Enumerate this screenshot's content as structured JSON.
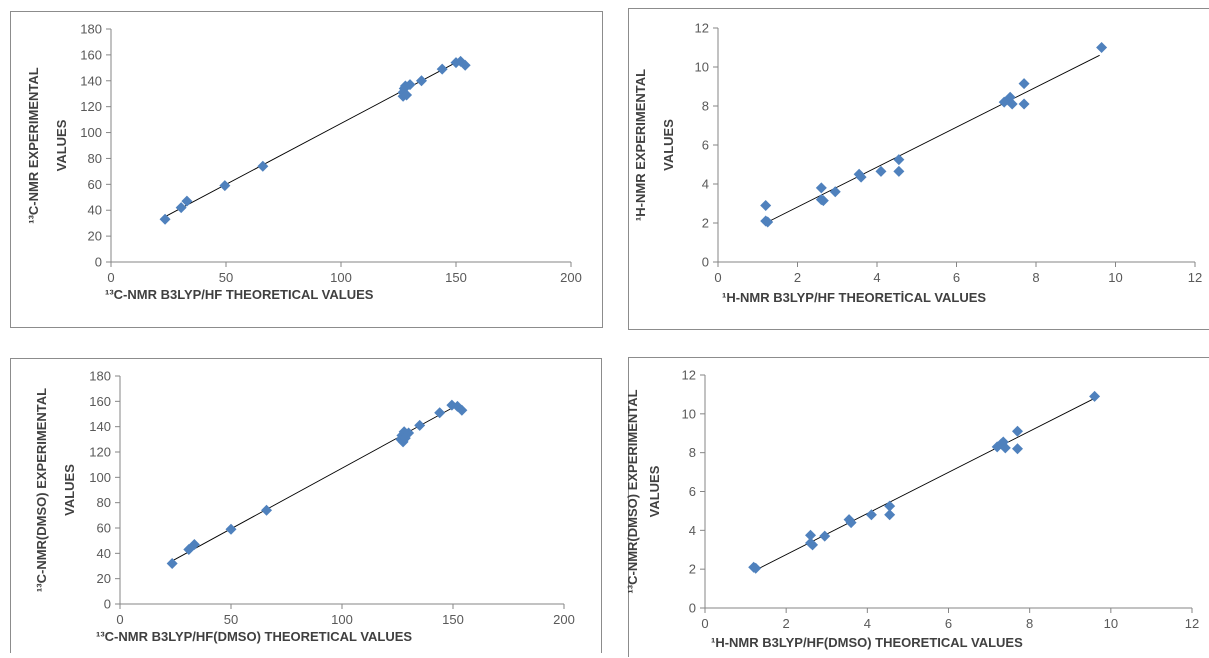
{
  "colors": {
    "marker": "#4f81bd",
    "trend": "#000000",
    "axis": "#868686",
    "text": "#595959",
    "title": "#404040"
  },
  "chart_data": [
    {
      "type": "scatter",
      "xlabel": "¹³C-NMR B3LYP/HF THEORETICAL VALUES",
      "ylabel": [
        "¹³C-NMR EXPERIMENTAL",
        "VALUES"
      ],
      "xlim": [
        0,
        200
      ],
      "ylim": [
        0,
        180
      ],
      "xticks": [
        "0",
        "50",
        "100",
        "150",
        "200"
      ],
      "yticks": [
        "0",
        "20",
        "40",
        "60",
        "80",
        "100",
        "120",
        "140",
        "160",
        "180"
      ],
      "trendline": [
        [
          23.5,
          35
        ],
        [
          152,
          156
        ]
      ],
      "points": [
        [
          23.5,
          33
        ],
        [
          30.5,
          42
        ],
        [
          33,
          47
        ],
        [
          49.5,
          59
        ],
        [
          66,
          74
        ],
        [
          127,
          128
        ],
        [
          127,
          131
        ],
        [
          127.5,
          134
        ],
        [
          128,
          136
        ],
        [
          128.5,
          129
        ],
        [
          130,
          137
        ],
        [
          135,
          140
        ],
        [
          144,
          149
        ],
        [
          150,
          154
        ],
        [
          152,
          155
        ],
        [
          154,
          152
        ]
      ]
    },
    {
      "type": "scatter",
      "xlabel": "¹H-NMR B3LYP/HF THEORETİCAL VALUES",
      "ylabel": [
        "¹H-NMR EXPERIMENTAL",
        "VALUES"
      ],
      "xlim": [
        0,
        12
      ],
      "ylim": [
        0,
        12
      ],
      "xticks": [
        "0",
        "2",
        "4",
        "6",
        "8",
        "10",
        "12"
      ],
      "yticks": [
        "0",
        "2",
        "4",
        "6",
        "8",
        "10",
        "12"
      ],
      "trendline": [
        [
          1.2,
          2.0
        ],
        [
          9.6,
          10.6
        ]
      ],
      "points": [
        [
          1.2,
          2.9
        ],
        [
          1.2,
          2.1
        ],
        [
          1.25,
          2.05
        ],
        [
          2.6,
          3.8
        ],
        [
          2.6,
          3.2
        ],
        [
          2.65,
          3.15
        ],
        [
          2.95,
          3.6
        ],
        [
          3.55,
          4.5
        ],
        [
          3.6,
          4.35
        ],
        [
          4.1,
          4.65
        ],
        [
          4.55,
          5.25
        ],
        [
          4.55,
          4.65
        ],
        [
          7.2,
          8.2
        ],
        [
          7.3,
          8.3
        ],
        [
          7.35,
          8.45
        ],
        [
          7.4,
          8.1
        ],
        [
          7.7,
          9.15
        ],
        [
          7.7,
          8.1
        ],
        [
          9.65,
          11.0
        ]
      ]
    },
    {
      "type": "scatter",
      "xlabel": "¹³C-NMR B3LYP/HF(DMSO) THEORETICAL VALUES",
      "ylabel": [
        "¹³C-NMR(DMSO) EXPERIMENTAL",
        "VALUES"
      ],
      "xlim": [
        0,
        200
      ],
      "ylim": [
        0,
        180
      ],
      "xticks": [
        "0",
        "50",
        "100",
        "150",
        "200"
      ],
      "yticks": [
        "0",
        "20",
        "40",
        "60",
        "80",
        "100",
        "120",
        "140",
        "160",
        "180"
      ],
      "trendline": [
        [
          23.5,
          34
        ],
        [
          152,
          157
        ]
      ],
      "points": [
        [
          23.5,
          32
        ],
        [
          31,
          43
        ],
        [
          33.5,
          47
        ],
        [
          50,
          59
        ],
        [
          66,
          74
        ],
        [
          126.5,
          130
        ],
        [
          127,
          133
        ],
        [
          127.5,
          128
        ],
        [
          128,
          136
        ],
        [
          128.5,
          131
        ],
        [
          130,
          135
        ],
        [
          135,
          141
        ],
        [
          144,
          151
        ],
        [
          149.5,
          157
        ],
        [
          152,
          156
        ],
        [
          154,
          153
        ]
      ]
    },
    {
      "type": "scatter",
      "xlabel": "¹H-NMR B3LYP/HF(DMSO) THEORETICAL VALUES",
      "ylabel": [
        "¹³C-NMR(DMSO) EXPERIMENTAL",
        "VALUES"
      ],
      "xlim": [
        0,
        12
      ],
      "ylim": [
        0,
        12
      ],
      "xticks": [
        "0",
        "2",
        "4",
        "6",
        "8",
        "10",
        "12"
      ],
      "yticks": [
        "0",
        "2",
        "4",
        "6",
        "8",
        "10",
        "12"
      ],
      "trendline": [
        [
          1.2,
          1.9
        ],
        [
          9.6,
          10.8
        ]
      ],
      "points": [
        [
          1.2,
          2.1
        ],
        [
          1.25,
          2.05
        ],
        [
          2.6,
          3.75
        ],
        [
          2.6,
          3.35
        ],
        [
          2.65,
          3.25
        ],
        [
          2.95,
          3.7
        ],
        [
          3.55,
          4.55
        ],
        [
          3.6,
          4.4
        ],
        [
          4.1,
          4.8
        ],
        [
          4.55,
          5.25
        ],
        [
          4.55,
          4.8
        ],
        [
          7.2,
          8.3
        ],
        [
          7.3,
          8.45
        ],
        [
          7.35,
          8.55
        ],
        [
          7.4,
          8.25
        ],
        [
          7.7,
          9.1
        ],
        [
          7.7,
          8.2
        ],
        [
          9.6,
          10.9
        ]
      ]
    }
  ]
}
